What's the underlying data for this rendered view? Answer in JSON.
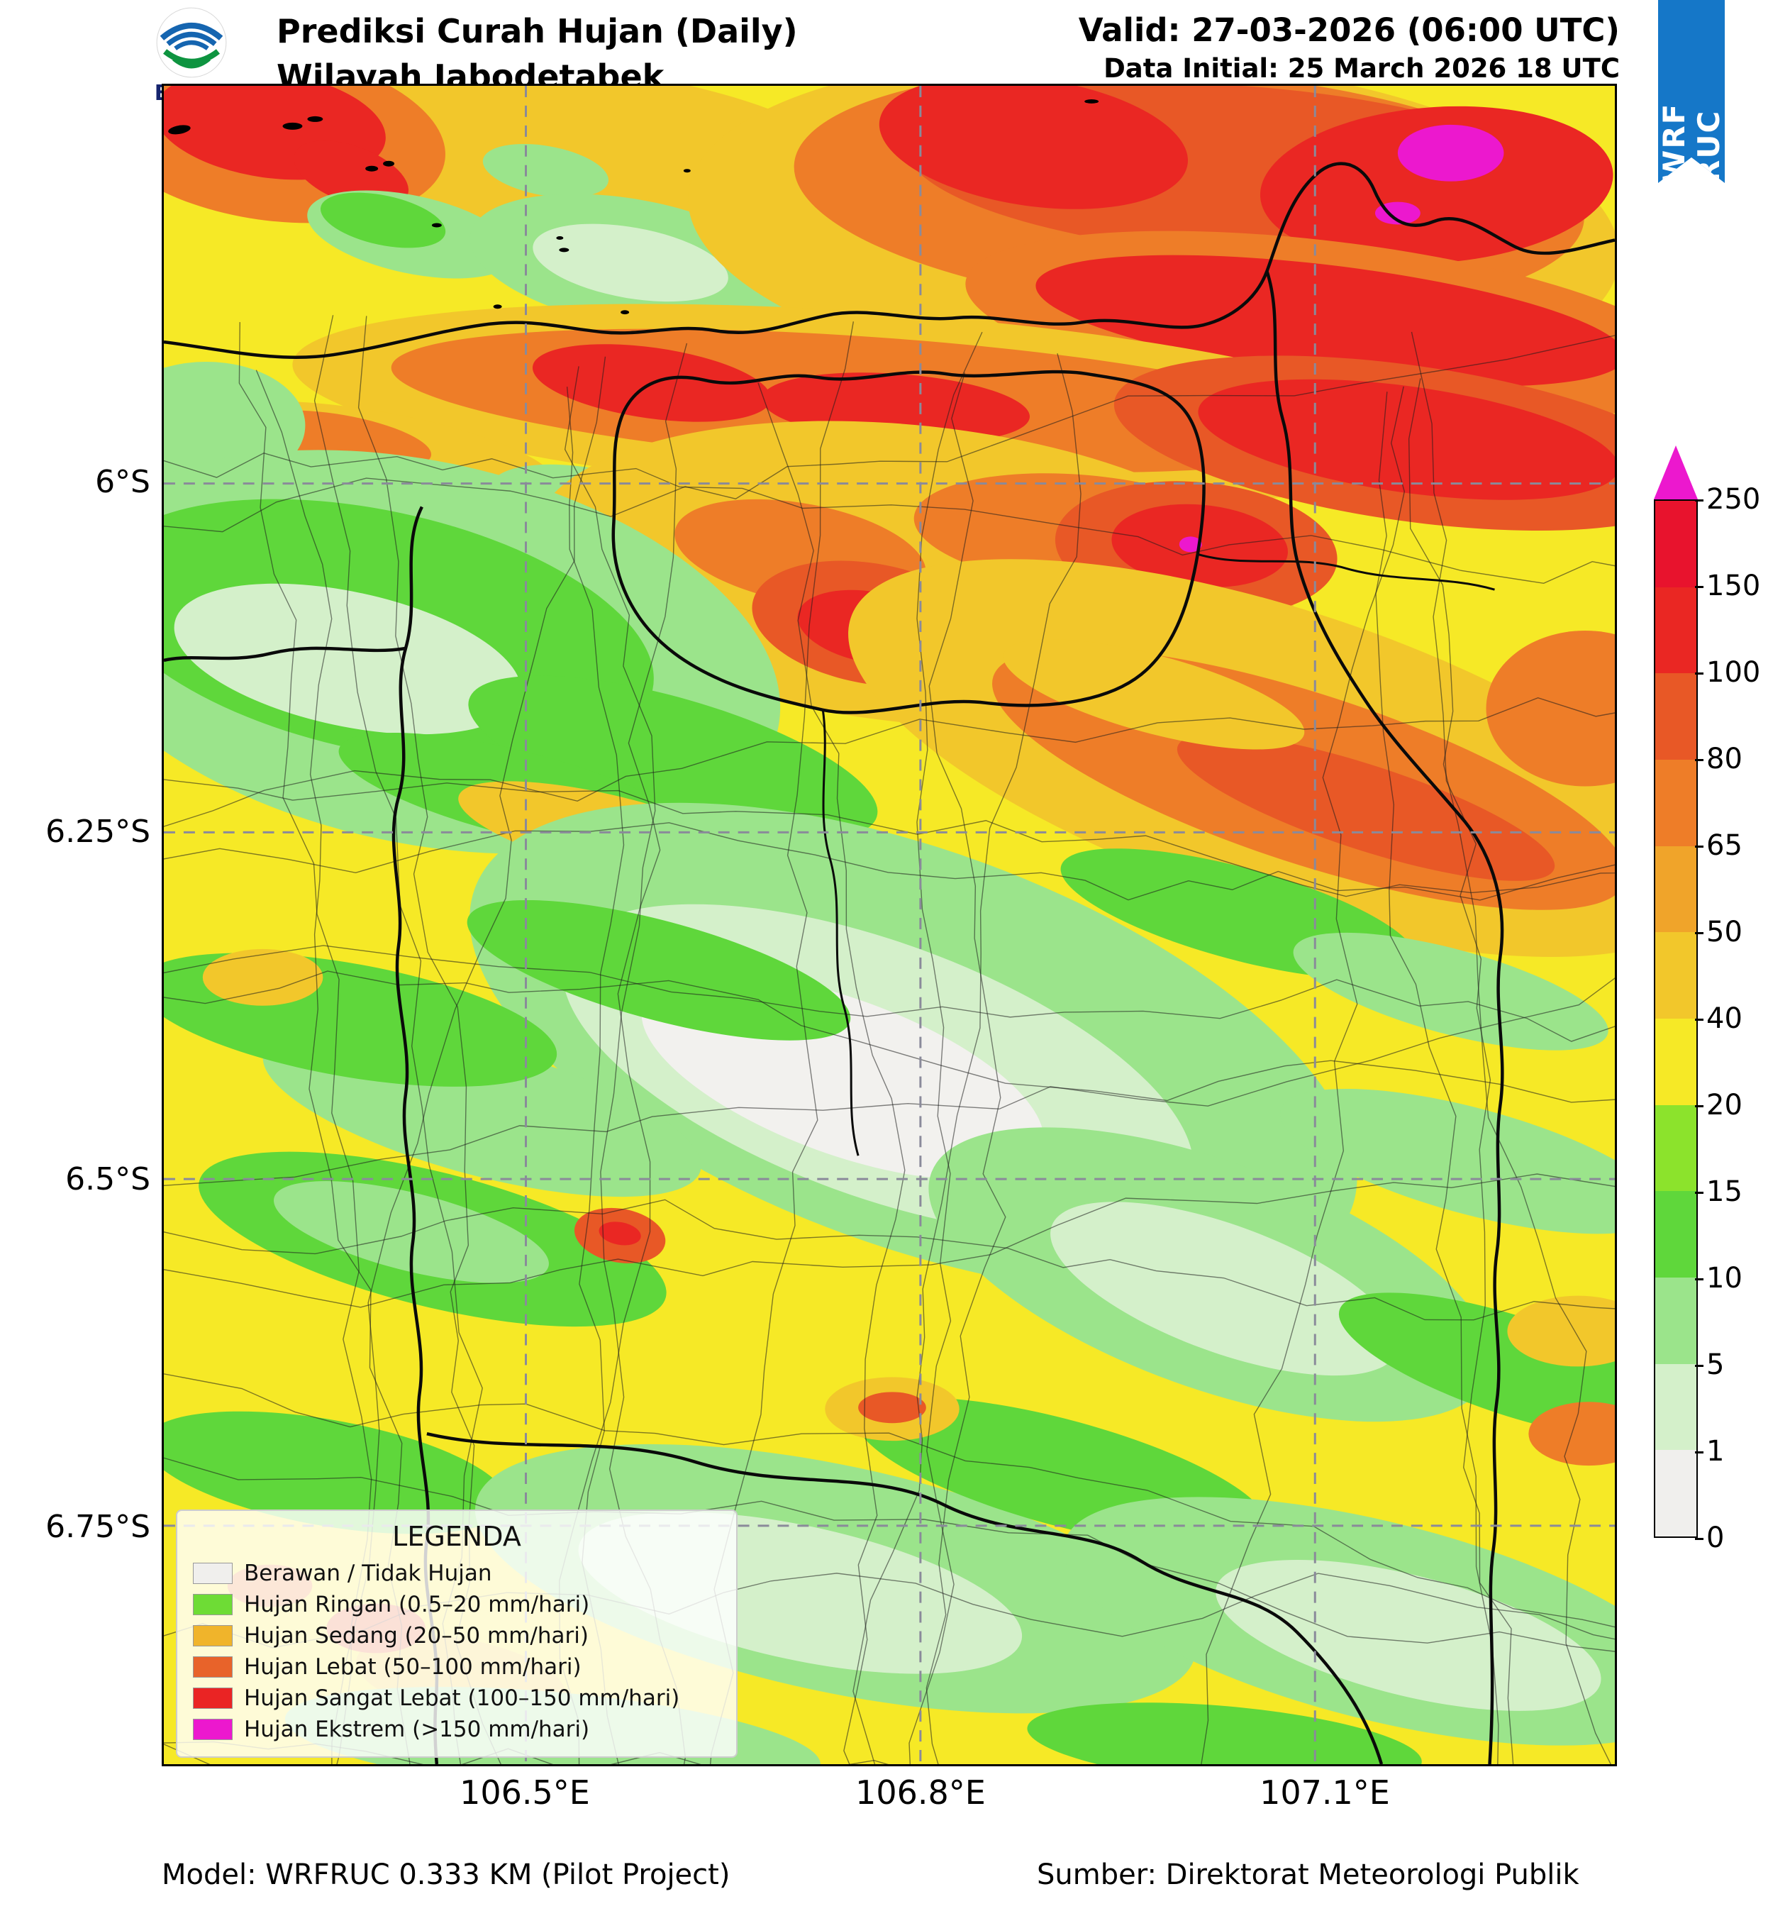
{
  "header": {
    "logo_text": "BMKG",
    "title_line1": "Prediksi Curah Hujan (Daily)",
    "title_line2": "Wilayah Jabodetabek",
    "valid_line": "Valid: 27-03-2026 (06:00 UTC)",
    "initial_line": "Data Initial: 25 March 2026 18 UTC",
    "ribbon_label": "WRF RUC"
  },
  "axes": {
    "y_ticks": [
      "6°S",
      "6.25°S",
      "6.5°S",
      "6.75°S"
    ],
    "x_ticks": [
      "106.5°E",
      "106.8°E",
      "107.1°E"
    ]
  },
  "colorbar": {
    "tick_labels": [
      "250",
      "150",
      "100",
      "80",
      "65",
      "50",
      "40",
      "20",
      "15",
      "10",
      "5",
      "1",
      "0"
    ],
    "segment_colors_bottom_to_top": [
      "#f0efed",
      "#d4f0ca",
      "#9be48b",
      "#5fd73b",
      "#8ce32c",
      "#f6e926",
      "#f2c72b",
      "#f0a42a",
      "#ee7d28",
      "#e85826",
      "#ea2723",
      "#e8132d"
    ],
    "arrow_color": "#ec18ce"
  },
  "legend": {
    "title": "LEGENDA",
    "items": [
      {
        "label": "Berawan / Tidak Hujan",
        "color": "#f0efed"
      },
      {
        "label": "Hujan Ringan (0.5–20 mm/hari)",
        "color": "#6edc35"
      },
      {
        "label": "Hujan Sedang (20–50 mm/hari)",
        "color": "#f0b42b"
      },
      {
        "label": "Hujan Lebat (50–100 mm/hari)",
        "color": "#e8632a"
      },
      {
        "label": "Hujan Sangat Lebat (100–150 mm/hari)",
        "color": "#ea2424"
      },
      {
        "label": "Hujan Ekstrem (>150 mm/hari)",
        "color": "#ec18ce"
      }
    ]
  },
  "footer": {
    "model": "Model: WRFRUC 0.333 KM (Pilot Project)",
    "source": "Sumber: Direktorat Meteorologi Publik"
  },
  "theme": {
    "ribbon_blue": "#1577c8",
    "map_base_yellow": "#f6e926",
    "grid_gray": "#8a8a9a"
  }
}
